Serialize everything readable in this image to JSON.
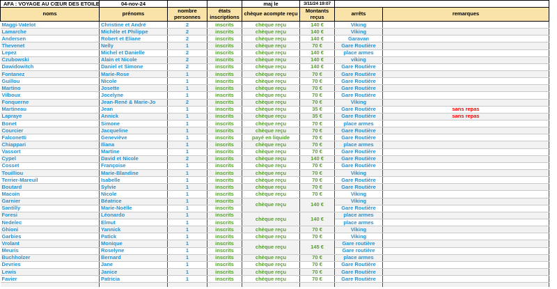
{
  "sheet": {
    "title": "AFA : VOYAGE AU CŒUR DES ETOILES",
    "date": "04-nov-24",
    "maj_label": "maj le",
    "maj_datetime": "3/11/24 19:07"
  },
  "headers": {
    "noms": "noms",
    "prenoms": "prénoms",
    "nombre": "nombre personnes",
    "etats": "états inscriptions",
    "cheque": "chèque acompte reçu",
    "montants": "Montants reçus",
    "arrets": "arrêts",
    "remarques": "remarques"
  },
  "colors": {
    "header_bg": "#FAE3A8",
    "highlight_yellow": "#FFFF00",
    "name_blue": "#2391D3",
    "status_green": "#55A02D",
    "remark_red": "#FF0000"
  },
  "rows": [
    {
      "nom": "Maggi-Vatelot",
      "prenom": "Christine et André",
      "nb": "2",
      "etat": "inscrits",
      "cheque": "chèque reçu",
      "montant": "140 €",
      "arret": "Viking",
      "remarque": ""
    },
    {
      "nom": "Lamarche",
      "prenom": "Michèle et Philippe",
      "nb": "2",
      "etat": "inscrits",
      "cheque": "chèque reçu",
      "montant": "140 €",
      "arret": "Viking",
      "remarque": ""
    },
    {
      "nom": "Andersen",
      "prenom": "Robert et Eliane",
      "nb": "2",
      "etat": "inscrits",
      "cheque": "chèque reçu",
      "montant": "140 €",
      "arret": "Garavan",
      "remarque": ""
    },
    {
      "nom": "Thevenet",
      "prenom": "Nelly",
      "nb": "1",
      "etat": "inscrits",
      "cheque": "chèque reçu",
      "montant": "70 €",
      "arret": "Gare Routière",
      "remarque": ""
    },
    {
      "nom": "Lepez",
      "prenom": "Michel et Danielle",
      "nb": "2",
      "etat": "inscrits",
      "cheque": "chèque reçu",
      "montant": "140 €",
      "arret": "place armes",
      "remarque": ""
    },
    {
      "nom": "Czubowski",
      "prenom": "Alain et Nicole",
      "nb": "2",
      "etat": "inscrits",
      "cheque": "chèque reçu",
      "montant": "140 €",
      "arret": "viking",
      "remarque": ""
    },
    {
      "nom": "Dawidowitch",
      "prenom": "Daniel et Simone",
      "nb": "2",
      "etat": "inscrits",
      "cheque": "chèque reçu",
      "montant": "140 €",
      "arret": "Gare Routière",
      "remarque": ""
    },
    {
      "nom": "Fontanez",
      "prenom": "Marie-Rose",
      "nb": "1",
      "etat": "inscrits",
      "cheque": "chèque reçu",
      "montant": "70 €",
      "arret": "Gare Routière",
      "remarque": ""
    },
    {
      "nom": "Guillou",
      "prenom": "Nicole",
      "nb": "1",
      "etat": "inscrits",
      "cheque": "chèque reçu",
      "montant": "70 €",
      "arret": "Gare Routière",
      "remarque": ""
    },
    {
      "nom": "Martino",
      "prenom": "Josette",
      "nb": "1",
      "etat": "inscrits",
      "cheque": "chèque reçu",
      "montant": "70 €",
      "arret": "Gare Routière",
      "remarque": ""
    },
    {
      "nom": "Vilboux",
      "prenom": "Jocelyne",
      "nb": "1",
      "etat": "inscrits",
      "cheque": "chèque reçu",
      "montant": "70 €",
      "arret": "Gare Routière",
      "remarque": ""
    },
    {
      "nom": "Fonquerne",
      "prenom": "Jean-René & Marie-Jo",
      "nb": "2",
      "etat": "inscrits",
      "cheque": "chèque reçu",
      "montant": "70 €",
      "arret": "Viking",
      "remarque": ""
    },
    {
      "nom": "Martineau",
      "prenom": "Jean",
      "nb": "1",
      "etat": "inscrits",
      "cheque": "chèque reçu",
      "montant": "35 €",
      "arret": "Gare Routière",
      "remarque": "sans repas"
    },
    {
      "nom": "Lapraye",
      "prenom": "Annick",
      "nb": "1",
      "etat": "inscrits",
      "cheque": "chèque reçu",
      "montant": "35 €",
      "arret": "Gare Routière",
      "remarque": "sans repas"
    },
    {
      "nom": "Bonet",
      "prenom": "Simone",
      "nb": "1",
      "etat": "inscrits",
      "cheque": "chèque reçu",
      "montant": "70 €",
      "arret": "place armes",
      "remarque": ""
    },
    {
      "nom": "Courcier",
      "prenom": "Jacqueline",
      "nb": "1",
      "etat": "inscrits",
      "cheque": "chèque reçu",
      "montant": "70 €",
      "arret": "Gare Routière",
      "remarque": ""
    },
    {
      "nom": "Falconetti",
      "prenom": "Geneviève",
      "nb": "1",
      "etat": "inscrits",
      "cheque": "payé en liquide",
      "montant": "70 €",
      "arret": "Gare Routière",
      "remarque": ""
    },
    {
      "nom": "Chiappari",
      "prenom": "Iliana",
      "nb": "1",
      "etat": "inscrits",
      "cheque": "chèque reçu",
      "montant": "70 €",
      "arret": "place armes",
      "remarque": ""
    },
    {
      "nom": "Vassort",
      "prenom": "Martine",
      "nb": "1",
      "etat": "inscrits",
      "cheque": "chèque reçu",
      "montant": "70 €",
      "arret": "Gare Routière",
      "remarque": ""
    },
    {
      "nom": "Cypel",
      "prenom": "David et Nicole",
      "nb": "2",
      "etat": "inscrits",
      "cheque": "chèque reçu",
      "montant": "140 €",
      "arret": "Gare Routière",
      "remarque": ""
    },
    {
      "nom": "Cosset",
      "prenom": "Françoise",
      "nb": "1",
      "etat": "inscrits",
      "cheque": "chèque reçu",
      "montant": "70 €",
      "arret": "Gare Routière",
      "remarque": ""
    },
    {
      "nom": "Touilliou",
      "prenom": "Marie-Blandine",
      "nb": "1",
      "etat": "inscrits",
      "cheque": "chèque reçu",
      "montant": "70 €",
      "arret": "Viking",
      "remarque": ""
    },
    {
      "nom": "Terrier-Mareuil",
      "prenom": "Isabelle",
      "nb": "1",
      "etat": "inscrits",
      "cheque": "chèque reçu",
      "montant": "70 €",
      "arret": "Gare Routière",
      "remarque": ""
    },
    {
      "nom": "Boutard",
      "prenom": "Sylvie",
      "nb": "1",
      "etat": "inscrits",
      "cheque": "chèque reçu",
      "montant": "70 €",
      "arret": "Gare Routière",
      "remarque": ""
    },
    {
      "nom": "Macoin",
      "prenom": "Nicole",
      "nb": "1",
      "etat": "inscrits",
      "cheque": "chèque reçu",
      "montant": "70 €",
      "arret": "Viking",
      "remarque": ""
    },
    {
      "nom": "Garnier",
      "prenom": "Béatrice",
      "nb": "1",
      "etat": "inscrits",
      "cheque": "chèque reçu",
      "montant": "140 €",
      "arret": "Viking",
      "remarque": "",
      "rowspan": 2
    },
    {
      "nom": "Santilly",
      "prenom": "Marie-Noëlle",
      "nb": "1",
      "etat": "inscrits",
      "in_span": true,
      "arret": "Gare Routière",
      "remarque": ""
    },
    {
      "nom": "Foresi",
      "prenom": "Léonardo",
      "nb": "1",
      "etat": "inscrits",
      "cheque": "chèque reçu",
      "montant": "140 €",
      "arret": "place armes",
      "remarque": "",
      "rowspan": 2
    },
    {
      "nom": "Nedelec",
      "prenom": "Elmut",
      "nb": "1",
      "etat": "inscrits",
      "in_span": true,
      "arret": "place armes",
      "remarque": ""
    },
    {
      "nom": "Ghioni",
      "prenom": "Yannick",
      "nb": "1",
      "etat": "inscrits",
      "cheque": "chèque reçu",
      "montant": "70 €",
      "arret": "Viking",
      "remarque": ""
    },
    {
      "nom": "Garbies",
      "prenom": "Patick",
      "nb": "1",
      "etat": "inscrits",
      "cheque": "chèque reçu",
      "montant": "70 €",
      "arret": "Viking",
      "remarque": ""
    },
    {
      "nom": "Vrolant",
      "prenom": "Monique",
      "nb": "1",
      "etat": "inscrits",
      "cheque": "chèque reçu",
      "montant": "145 €",
      "arret": "Gare routière",
      "remarque": "",
      "rowspan": 2
    },
    {
      "nom": "Meuris",
      "prenom": "Roselyne",
      "nb": "1",
      "etat": "inscrits",
      "in_span": true,
      "arret": "Gare routière",
      "remarque": ""
    },
    {
      "nom": "Buchholzer",
      "prenom": "Bernard",
      "nb": "1",
      "etat": "inscrits",
      "cheque": "chèque reçu",
      "montant": "70 €",
      "arret": "place armes",
      "remarque": ""
    },
    {
      "nom": "Devries",
      "prenom": "Jane",
      "nb": "1",
      "etat": "inscrits",
      "cheque": "chèque reçu",
      "montant": "70 €",
      "arret": "Gare Routière",
      "remarque": ""
    },
    {
      "nom": "Lewis",
      "prenom": "Janice",
      "nb": "1",
      "etat": "inscrits",
      "cheque": "chèque reçu",
      "montant": "70 €",
      "arret": "Gare Routière",
      "remarque": ""
    },
    {
      "nom": "Favier",
      "prenom": "Patricia",
      "nb": "1",
      "etat": "inscrits",
      "cheque": "chèque reçu",
      "montant": "70 €",
      "arret": "Gare Routière",
      "remarque": ""
    }
  ]
}
